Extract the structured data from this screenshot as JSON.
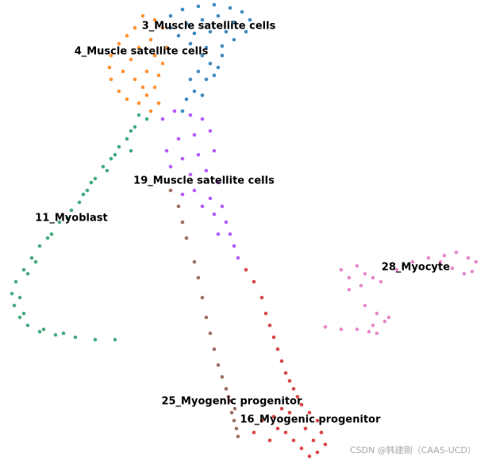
{
  "chart_data": {
    "type": "scatter",
    "series": [
      {
        "name": "3_Muscle satellite cells",
        "color": "#1f77b4",
        "x": [
          21.5,
          23,
          25,
          27,
          29,
          30.5,
          31.5,
          31,
          29.5,
          28,
          26,
          24,
          22.5,
          21.5,
          23.5,
          25.5,
          27.5,
          29.5,
          26.5,
          24.5,
          28.5,
          25.5,
          26.5,
          25,
          24,
          26,
          27,
          24.5,
          23.5,
          25.5,
          23,
          28,
          27.5
        ],
        "values": [
          56.6,
          57.4,
          57.8,
          58,
          57.6,
          57.1,
          56.1,
          54.6,
          53.6,
          52.8,
          52.6,
          53.1,
          54.1,
          55.1,
          55.6,
          56.1,
          56.6,
          55.8,
          54.6,
          54.4,
          54.6,
          51.6,
          50.6,
          49.6,
          48.6,
          48.6,
          49.1,
          47.1,
          46.1,
          46.6,
          44.6,
          51.6,
          50.1
        ]
      },
      {
        "name": "4_Muscle satellite cells",
        "color": "#ff7f0e",
        "x": [
          18,
          19.5,
          20.5,
          17,
          16,
          15,
          14,
          13.8,
          14,
          15,
          16,
          17.5,
          18.5,
          19.5,
          20,
          20.5,
          21,
          19,
          17.5,
          16.5,
          15.5,
          17,
          18.5,
          19.5,
          18,
          20,
          19
        ],
        "values": [
          56.6,
          56.1,
          55.1,
          55.1,
          54.1,
          53.1,
          51.6,
          50.1,
          48.6,
          47.1,
          46.1,
          45.6,
          46.6,
          47.6,
          49.1,
          50.6,
          52.6,
          53.6,
          52.6,
          51.1,
          49.6,
          48.6,
          49.6,
          51.6,
          47.6,
          45.6,
          44.6
        ]
      },
      {
        "name": "19_Muscle satellite cells",
        "color": "#aa40fc",
        "x": [
          20.5,
          22,
          24,
          25.5,
          26.5,
          24.5,
          22.5,
          21,
          23,
          25,
          27,
          21.5,
          24,
          26,
          27.5,
          24.5,
          26.5,
          28,
          27,
          28.5,
          29,
          27.5,
          29.5,
          30,
          25.5,
          23
        ],
        "values": [
          43.6,
          44.6,
          44.1,
          43.6,
          42.1,
          41.6,
          41.1,
          39.6,
          38.6,
          39.1,
          39.6,
          37.6,
          36.6,
          37.1,
          35.6,
          34.6,
          33.6,
          32.6,
          31.6,
          30.6,
          29.1,
          29.1,
          27.6,
          26.1,
          32.6,
          34.1
        ]
      },
      {
        "name": "11_Myoblast",
        "color": "#279e68",
        "x": [
          18.5,
          17,
          16,
          15,
          14,
          13,
          12,
          11,
          10,
          9,
          7.5,
          6.5,
          5,
          4,
          3,
          2,
          1.5,
          1.8,
          2.5,
          3.5,
          5,
          7,
          9.5,
          12,
          14.5,
          4.5,
          3.5,
          2.5,
          3,
          6,
          8.5,
          11.5,
          14.5,
          16.5,
          17.5,
          16.5,
          13.5,
          10.5,
          5.5,
          8
        ],
        "values": [
          43.6,
          42.6,
          41.1,
          40.1,
          38.6,
          37.6,
          36.1,
          34.6,
          33.1,
          32.1,
          30.6,
          29.1,
          27.6,
          26.1,
          24.6,
          23.1,
          21.6,
          20.1,
          18.6,
          17.6,
          16.8,
          16.4,
          16.1,
          15.8,
          15.8,
          25.6,
          24.1,
          21.1,
          19.1,
          28.6,
          31.1,
          35.6,
          39.1,
          42.1,
          44.1,
          39.6,
          37.1,
          34.1,
          17.1,
          16.6
        ]
      },
      {
        "name": "28_Myocyte",
        "color": "#e377c2",
        "x": [
          43,
          45,
          46,
          47,
          48,
          50,
          52,
          54,
          56,
          57.5,
          59,
          60,
          59.5,
          58.5,
          57,
          55.5,
          44,
          46,
          47.5,
          49,
          47,
          45,
          43,
          41,
          46.5,
          47.5,
          48.5,
          44,
          45.5
        ],
        "values": [
          24.6,
          25.1,
          24.1,
          23.6,
          23.1,
          24.6,
          25.6,
          26.1,
          26.4,
          26.8,
          26.1,
          25.6,
          24.4,
          24.1,
          24.8,
          25.6,
          22.1,
          20.1,
          19.1,
          18.6,
          17.6,
          17.1,
          17.1,
          17.4,
          16.8,
          16.6,
          18.1,
          23.6,
          22.6
        ]
      },
      {
        "name": "25_Myogenic progenitor",
        "color": "#8c564b",
        "x": [
          21.5,
          22.5,
          23,
          23.5,
          24.5,
          25,
          25.5,
          26,
          26.5,
          27,
          27.5,
          28,
          28.5,
          29,
          29.2,
          29.5,
          29.8,
          30,
          28.8,
          29.6
        ],
        "values": [
          34.6,
          32.6,
          30.6,
          28.6,
          25.6,
          23.6,
          21.1,
          18.6,
          16.6,
          14.6,
          12.6,
          11.1,
          9.6,
          8.1,
          6.6,
          5.6,
          4.6,
          3.6,
          8.6,
          7.1
        ]
      },
      {
        "name": "16_Myogenic progenitor",
        "color": "#d62728",
        "x": [
          31,
          32,
          33,
          33.5,
          34,
          34.5,
          35,
          35.5,
          36,
          36.5,
          37,
          37.5,
          38,
          39,
          40,
          40.5,
          41,
          40,
          39,
          38,
          37,
          36,
          35,
          34,
          32,
          33,
          34.5,
          35.5,
          36.5,
          38.5,
          39.5
        ],
        "values": [
          24.6,
          23.1,
          21.1,
          19.1,
          17.6,
          16.1,
          14.6,
          13.1,
          11.6,
          10.6,
          9.6,
          8.6,
          7.6,
          6.6,
          5.6,
          4.1,
          2.6,
          1.6,
          1.1,
          2.1,
          3.1,
          4.1,
          4.6,
          3.1,
          4.1,
          5.6,
          6.1,
          7.1,
          6.6,
          4.6,
          3.1
        ]
      }
    ]
  },
  "watermark": "CSDN @韩建刚（CAAS-UCD）"
}
